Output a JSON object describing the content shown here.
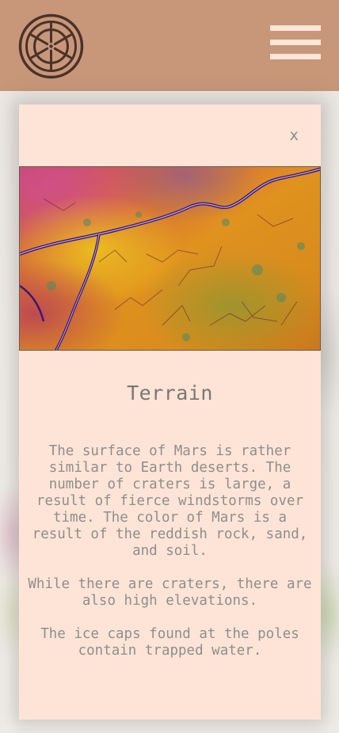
{
  "header": {
    "logo_icon": "ship-wheel-icon",
    "menu_icon": "hamburger-menu-icon",
    "background_color": "#c8977a",
    "menu_color": "#fde6d8"
  },
  "modal": {
    "close_label": "x",
    "image_alt": "Satellite view of Martian terrain",
    "title": "Terrain",
    "paragraphs": [
      "The surface of Mars is rather similar to Earth deserts. The number of craters is large, a result of fierce windstorms over time. The color of Mars is a result of the reddish rock, sand, and soil.",
      "While there are craters, there are also high elevations.",
      "The ice caps found at the poles contain trapped water."
    ],
    "background_color": "#fee4d6"
  }
}
